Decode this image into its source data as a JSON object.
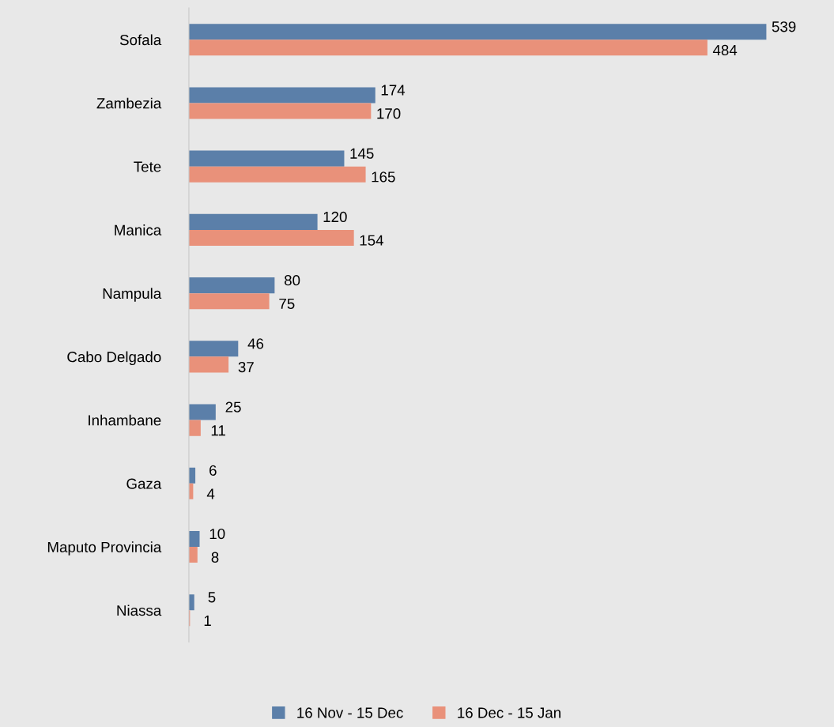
{
  "chart_data": {
    "type": "bar",
    "orientation": "horizontal",
    "categories": [
      "Sofala",
      "Zambezia",
      "Tete",
      "Manica",
      "Nampula",
      "Cabo Delgado",
      "Inhambane",
      "Gaza",
      "Maputo Provincia",
      "Niassa"
    ],
    "series": [
      {
        "name": "16 Nov - 15 Dec",
        "color": "#5b7fa9",
        "values": [
          539,
          174,
          145,
          120,
          80,
          46,
          25,
          6,
          10,
          5
        ]
      },
      {
        "name": "16 Dec - 15 Jan",
        "color": "#e9917a",
        "values": [
          484,
          170,
          165,
          154,
          75,
          37,
          11,
          4,
          8,
          1
        ]
      }
    ],
    "data_labels": true,
    "legend": "bottom",
    "grid": false,
    "tick_labels": "y"
  }
}
